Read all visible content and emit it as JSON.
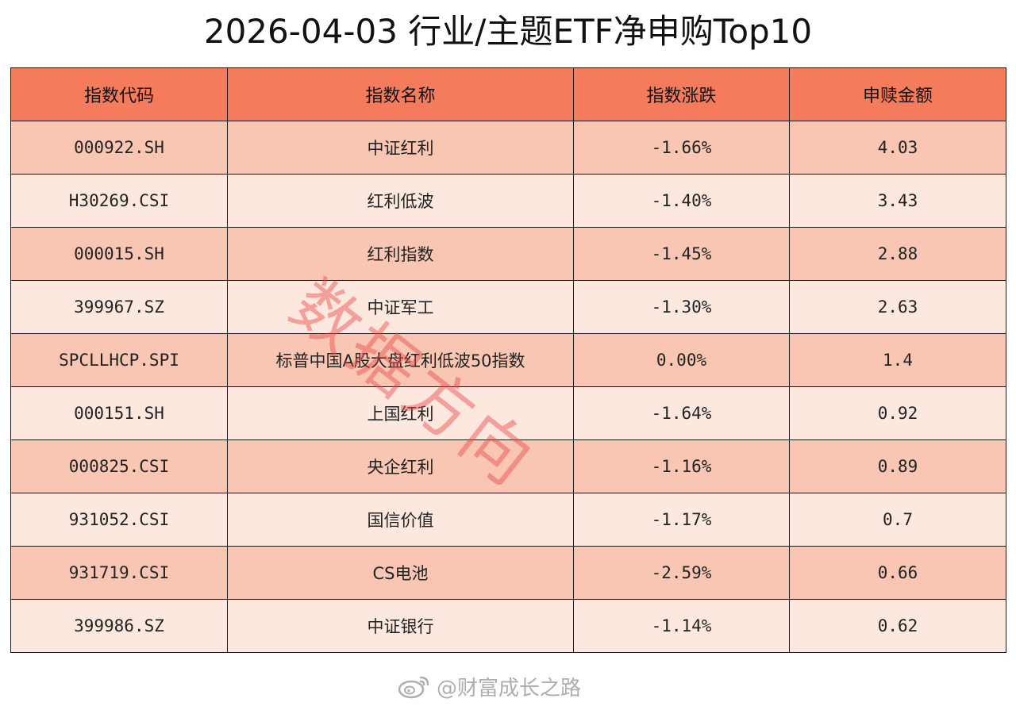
{
  "title": "2026-04-03 行业/主题ETF净申购Top10",
  "table": {
    "headers": [
      "指数代码",
      "指数名称",
      "指数涨跌",
      "申赎金额"
    ],
    "rows": [
      {
        "code": "000922.SH",
        "name": "中证红利",
        "change": "-1.66%",
        "amount": "4.03"
      },
      {
        "code": "H30269.CSI",
        "name": "红利低波",
        "change": "-1.40%",
        "amount": "3.43"
      },
      {
        "code": "000015.SH",
        "name": "红利指数",
        "change": "-1.45%",
        "amount": "2.88"
      },
      {
        "code": "399967.SZ",
        "name": "中证军工",
        "change": "-1.30%",
        "amount": "2.63"
      },
      {
        "code": "SPCLLHCP.SPI",
        "name": "标普中国A股大盘红利低波50指数",
        "change": "0.00%",
        "amount": "1.4"
      },
      {
        "code": "000151.SH",
        "name": "上国红利",
        "change": "-1.64%",
        "amount": "0.92"
      },
      {
        "code": "000825.CSI",
        "name": "央企红利",
        "change": "-1.16%",
        "amount": "0.89"
      },
      {
        "code": "931052.CSI",
        "name": "国信价值",
        "change": "-1.17%",
        "amount": "0.7"
      },
      {
        "code": "931719.CSI",
        "name": "CS电池",
        "change": "-2.59%",
        "amount": "0.66"
      },
      {
        "code": "399986.SZ",
        "name": "中证银行",
        "change": "-1.14%",
        "amount": "0.62"
      }
    ]
  },
  "watermark": "数据方向",
  "footer": {
    "text": "@财富成长之路",
    "icon": "weibo-icon"
  },
  "colors": {
    "header": "#f47b5c",
    "row_odd": "#f8c6b3",
    "row_even": "#fde8df",
    "watermark": "#e84646"
  }
}
